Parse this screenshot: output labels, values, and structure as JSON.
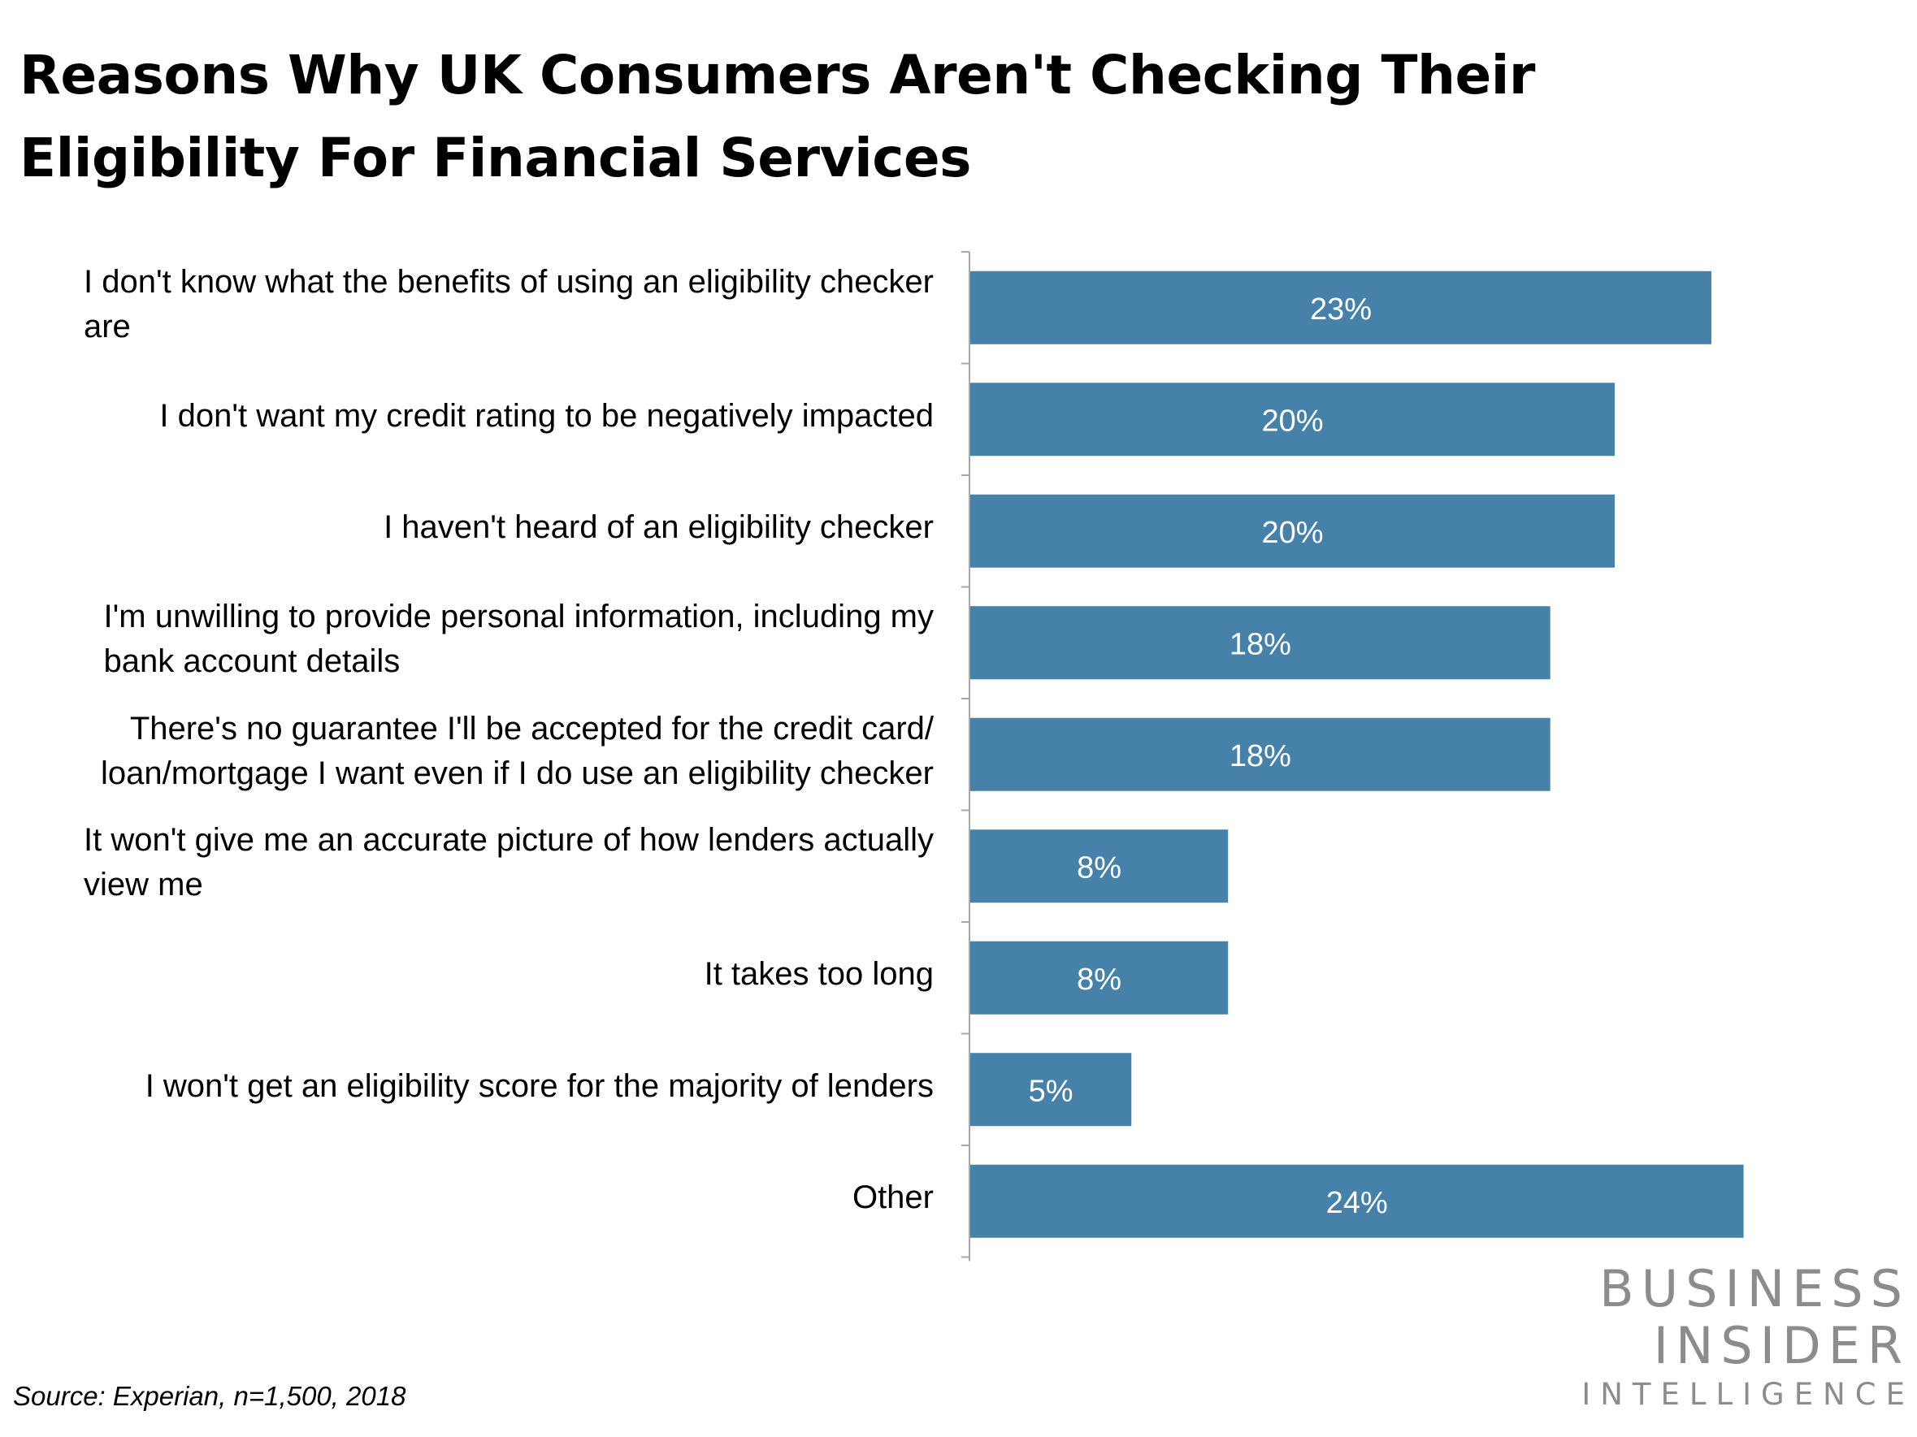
{
  "chart_data": {
    "type": "bar",
    "orientation": "horizontal",
    "title": "Reasons Why UK Consumers Aren't Checking Their Eligibility For Financial Services",
    "title_lines": [
      "Reasons Why UK Consumers Aren't Checking Their",
      "Eligibility For Financial Services"
    ],
    "categories": [
      "I don't know what the benefits of using an eligibility checker are",
      "I don't want my credit rating to be negatively impacted",
      "I haven't heard of an eligibility checker",
      "I'm unwilling to provide personal information, including my bank account details",
      "There's no guarantee I'll be accepted for the credit card/loan/mortgage I want even if I do use an eligibility checker",
      "It won't give me an accurate picture of how lenders actually view me",
      "It takes too long",
      "I won't get an eligibility score for the majority of lenders",
      "Other"
    ],
    "category_display": [
      "I don't know what the benefits of using an eligibility checker\nare",
      "I don't want my credit rating to be negatively impacted",
      "I haven't heard of an eligibility checker",
      "I'm unwilling to provide personal information, including my\nbank account details",
      "There's no guarantee I'll be accepted for the credit card/\nloan/mortgage I want even if I do use an eligibility checker",
      "It won't give me an accurate picture of how lenders actually\nview me",
      "It takes too long",
      "I won't get an eligibility score for the majority of lenders",
      "Other"
    ],
    "values": [
      23,
      20,
      20,
      18,
      18,
      8,
      8,
      5,
      24
    ],
    "data_labels": [
      "23%",
      "20%",
      "20%",
      "18%",
      "18%",
      "8%",
      "8%",
      "5%",
      "24%"
    ],
    "unit": "%",
    "xlim": [
      0,
      30
    ],
    "bar_color": "#4681a9",
    "axis_color": "#a6a6a6",
    "grid": false,
    "legend": "none"
  },
  "source": "Source: Experian, n=1,500, 2018",
  "logo": {
    "line1": "BUSINESS",
    "line2": "INSIDER",
    "line3": "INTELLIGENCE"
  }
}
